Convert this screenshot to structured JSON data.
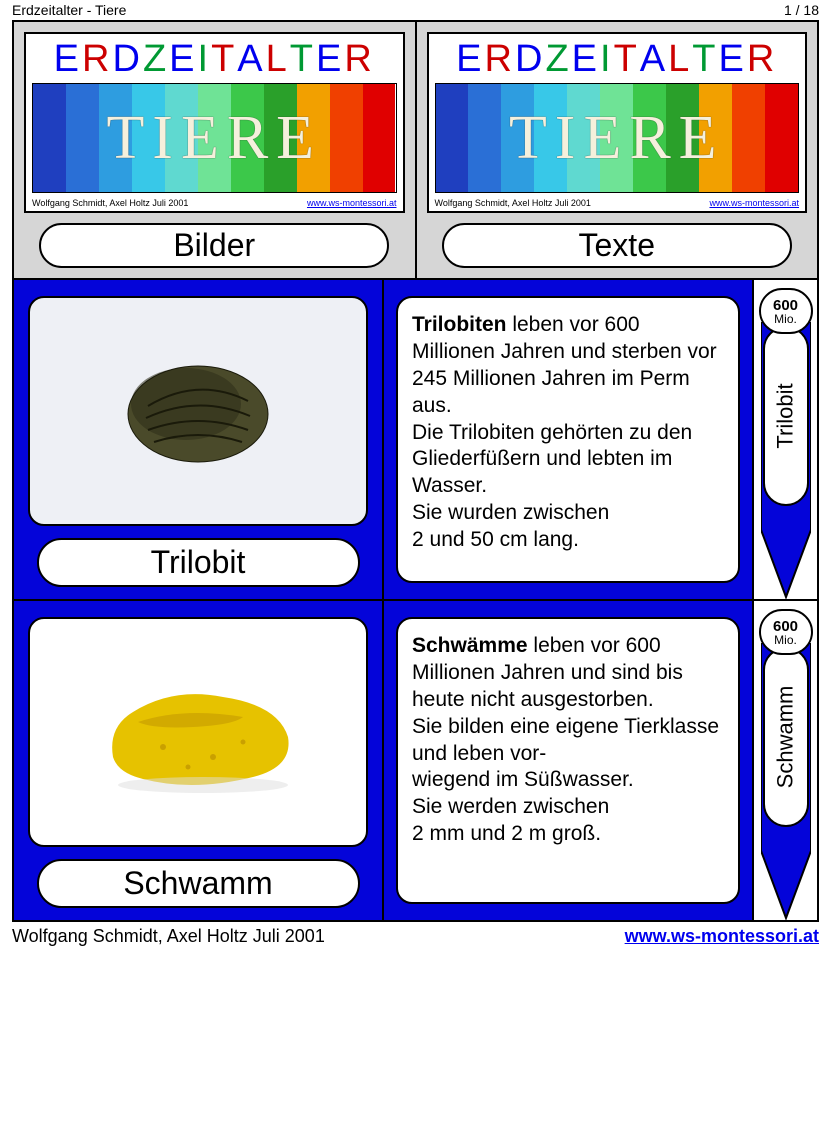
{
  "header": {
    "title": "Erdzeitalter - Tiere",
    "page": "1  /  18"
  },
  "title_card": {
    "word": "ERDZEITALTER",
    "letter_colors": [
      "#0000EE",
      "#cc0000",
      "#0000EE",
      "#009933",
      "#0000EE",
      "#009933",
      "#cc0000",
      "#0000EE",
      "#cc0000",
      "#009933",
      "#0000EE",
      "#cc0000"
    ],
    "subtitle": "TIERE",
    "rainbow_colors": [
      "#1f3fbf",
      "#2a6fd6",
      "#2e9de0",
      "#38c8e8",
      "#5fd9d0",
      "#6fe396",
      "#3cc84a",
      "#2aa02a",
      "#f2a000",
      "#f04000",
      "#e00000"
    ],
    "credit": "Wolfgang Schmidt, Axel Holtz  Juli 2001",
    "link": "www.ws-montessori.at"
  },
  "columns": {
    "left_label": "Bilder",
    "right_label": "Texte"
  },
  "cards": [
    {
      "name": "Trilobit",
      "age_number": "600",
      "age_unit": "Mio.",
      "text_bold": "Trilobiten",
      "text_rest": " leben vor 600 Millionen Jahren und sterben vor 245 Millionen Jahren im Perm aus.\nDie Trilobiten gehörten zu den Gliederfüßern und lebten im Wasser.\nSie wurden zwischen\n2 und 50 cm lang.",
      "image_colors": {
        "body": "#4a4a2a",
        "shade": "#2e2e18",
        "bg": "#eef0f5"
      }
    },
    {
      "name": "Schwamm",
      "age_number": "600",
      "age_unit": "Mio.",
      "text_bold": "Schwämme",
      "text_rest": " leben vor 600 Millionen Jahren und sind bis heute nicht ausgestorben.\nSie bilden eine eigene Tierklasse und leben vor-\nwiegend im Süßwasser.\nSie werden zwischen\n2 mm und 2 m groß.",
      "image_colors": {
        "body": "#e6c200",
        "shade": "#c9a000",
        "bg": "#ffffff"
      }
    }
  ],
  "footer": {
    "credit": "Wolfgang Schmidt, Axel Holtz  Juli 2001",
    "link": "www.ws-montessori.at"
  },
  "theme": {
    "card_bg": "#0404d9",
    "header_bg": "#d6d6d6"
  }
}
